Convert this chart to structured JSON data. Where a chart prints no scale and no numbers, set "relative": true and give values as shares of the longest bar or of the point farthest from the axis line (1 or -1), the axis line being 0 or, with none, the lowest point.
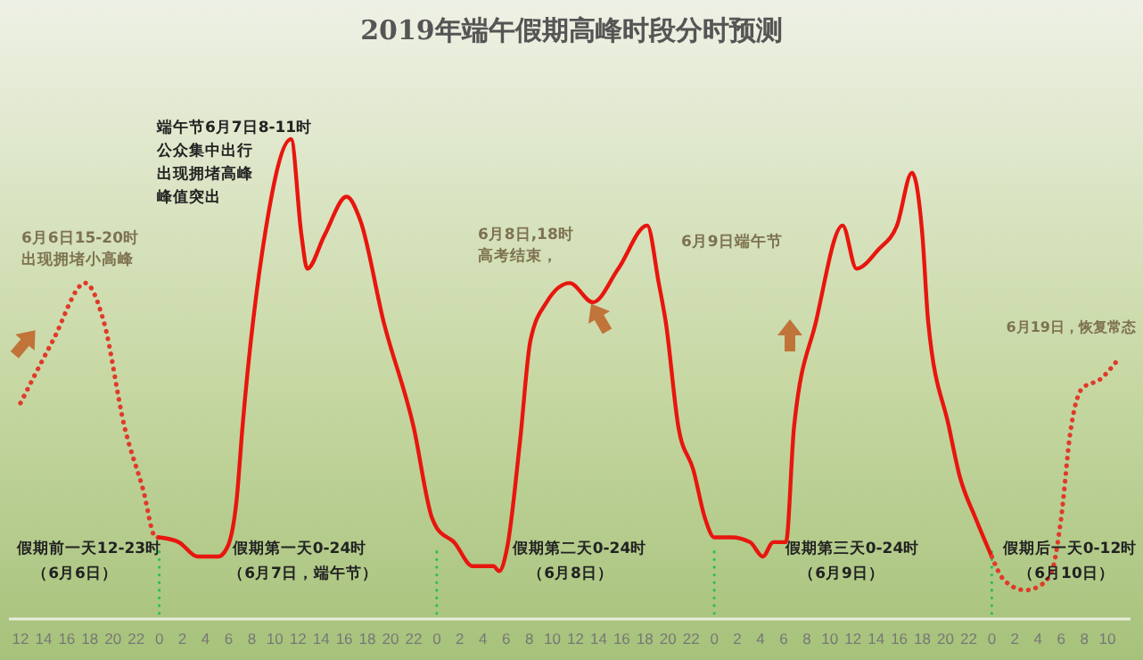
{
  "chart_data": {
    "type": "line",
    "title": "2019年端午假期高峰时段分时预测",
    "relative": true,
    "xlim": [
      "2019-06-06T11:00",
      "2019-06-10T12:00"
    ],
    "xticks": [
      {
        "value": "2019-06-06T12:00",
        "label": "12"
      },
      {
        "value": "2019-06-06T14:00",
        "label": "14"
      },
      {
        "value": "2019-06-06T16:00",
        "label": "16"
      },
      {
        "value": "2019-06-06T18:00",
        "label": "18"
      },
      {
        "value": "2019-06-06T20:00",
        "label": "20"
      },
      {
        "value": "2019-06-06T22:00",
        "label": "22"
      },
      {
        "value": "2019-06-07T00:00",
        "label": "0"
      },
      {
        "value": "2019-06-07T02:00",
        "label": "2"
      },
      {
        "value": "2019-06-07T04:00",
        "label": "4"
      },
      {
        "value": "2019-06-07T06:00",
        "label": "6"
      },
      {
        "value": "2019-06-07T08:00",
        "label": "8"
      },
      {
        "value": "2019-06-07T10:00",
        "label": "10"
      },
      {
        "value": "2019-06-07T12:00",
        "label": "12"
      },
      {
        "value": "2019-06-07T14:00",
        "label": "14"
      },
      {
        "value": "2019-06-07T16:00",
        "label": "16"
      },
      {
        "value": "2019-06-07T18:00",
        "label": "18"
      },
      {
        "value": "2019-06-07T20:00",
        "label": "20"
      },
      {
        "value": "2019-06-07T22:00",
        "label": "22"
      },
      {
        "value": "2019-06-08T00:00",
        "label": "0"
      },
      {
        "value": "2019-06-08T02:00",
        "label": "2"
      },
      {
        "value": "2019-06-08T04:00",
        "label": "4"
      },
      {
        "value": "2019-06-08T06:00",
        "label": "6"
      },
      {
        "value": "2019-06-08T08:00",
        "label": "8"
      },
      {
        "value": "2019-06-08T10:00",
        "label": "10"
      },
      {
        "value": "2019-06-08T12:00",
        "label": "12"
      },
      {
        "value": "2019-06-08T14:00",
        "label": "14"
      },
      {
        "value": "2019-06-08T16:00",
        "label": "16"
      },
      {
        "value": "2019-06-08T18:00",
        "label": "18"
      },
      {
        "value": "2019-06-08T20:00",
        "label": "20"
      },
      {
        "value": "2019-06-08T22:00",
        "label": "22"
      },
      {
        "value": "2019-06-09T00:00",
        "label": "0"
      },
      {
        "value": "2019-06-09T02:00",
        "label": "2"
      },
      {
        "value": "2019-06-09T04:00",
        "label": "4"
      },
      {
        "value": "2019-06-09T06:00",
        "label": "6"
      },
      {
        "value": "2019-06-09T08:00",
        "label": "8"
      },
      {
        "value": "2019-06-09T10:00",
        "label": "10"
      },
      {
        "value": "2019-06-09T12:00",
        "label": "12"
      },
      {
        "value": "2019-06-09T14:00",
        "label": "14"
      },
      {
        "value": "2019-06-09T16:00",
        "label": "16"
      },
      {
        "value": "2019-06-09T18:00",
        "label": "18"
      },
      {
        "value": "2019-06-09T20:00",
        "label": "20"
      },
      {
        "value": "2019-06-09T22:00",
        "label": "22"
      },
      {
        "value": "2019-06-10T00:00",
        "label": "0"
      },
      {
        "value": "2019-06-10T02:00",
        "label": "2"
      },
      {
        "value": "2019-06-10T04:00",
        "label": "4"
      },
      {
        "value": "2019-06-10T06:00",
        "label": "6"
      },
      {
        "value": "2019-06-10T08:00",
        "label": "8"
      },
      {
        "value": "2019-06-10T10:00",
        "label": "10"
      }
    ],
    "series": [
      {
        "color": "#e03a2a",
        "line_style": "dotted",
        "x": [
          "2019-06-06T12:00",
          "2019-06-06T14:48",
          "2019-06-06T17:36",
          "2019-06-06T19:12",
          "2019-06-06T21:00",
          "2019-06-06T22:36",
          "2019-06-06T23:42",
          "2019-06-07T00:00"
        ],
        "values": [
          0.45,
          0.58,
          0.7,
          0.62,
          0.4,
          0.27,
          0.17,
          0.17
        ]
      },
      {
        "color": "#e8160e",
        "line_style": "solid",
        "x": [
          "2019-06-07T00:00",
          "2019-06-07T01:42",
          "2019-06-07T03:18",
          "2019-06-07T05:06",
          "2019-06-07T05:54",
          "2019-06-07T06:42",
          "2019-06-07T07:12",
          "2019-06-07T09:12",
          "2019-06-07T11:24",
          "2019-06-07T12:18",
          "2019-06-07T12:48",
          "2019-06-07T14:18",
          "2019-06-07T16:12",
          "2019-06-07T17:24",
          "2019-06-07T19:24",
          "2019-06-07T22:00",
          "2019-06-07T23:36",
          "2019-06-08T00:00",
          "2019-06-08T01:30",
          "2019-06-08T03:06",
          "2019-06-08T04:54",
          "2019-06-08T05:24",
          "2019-06-08T06:06",
          "2019-06-08T07:12",
          "2019-06-08T08:06",
          "2019-06-08T09:30",
          "2019-06-08T11:30",
          "2019-06-08T13:30",
          "2019-06-08T15:42",
          "2019-06-08T18:12",
          "2019-06-08T19:12",
          "2019-06-08T19:48",
          "2019-06-08T20:54",
          "2019-06-08T22:12",
          "2019-06-08T23:12",
          "2019-06-09T00:00",
          "2019-06-09T01:30",
          "2019-06-09T03:06",
          "2019-06-09T04:12",
          "2019-06-09T05:06",
          "2019-06-09T06:12",
          "2019-06-09T06:54",
          "2019-06-09T08:48",
          "2019-06-09T11:06",
          "2019-06-09T12:18",
          "2019-06-09T14:12",
          "2019-06-09T15:48",
          "2019-06-09T17:06",
          "2019-06-09T18:00",
          "2019-06-09T18:30",
          "2019-06-09T20:18",
          "2019-06-09T21:12",
          "2019-06-09T22:36",
          "2019-06-10T00:00"
        ],
        "values": [
          0.17,
          0.16,
          0.13,
          0.13,
          0.15,
          0.25,
          0.4,
          0.81,
          1.0,
          0.8,
          0.73,
          0.8,
          0.88,
          0.83,
          0.62,
          0.4,
          0.21,
          0.19,
          0.16,
          0.11,
          0.11,
          0.1,
          0.15,
          0.37,
          0.58,
          0.66,
          0.7,
          0.66,
          0.73,
          0.82,
          0.7,
          0.62,
          0.4,
          0.31,
          0.21,
          0.17,
          0.17,
          0.16,
          0.13,
          0.16,
          0.16,
          0.4,
          0.62,
          0.82,
          0.73,
          0.77,
          0.82,
          0.93,
          0.8,
          0.62,
          0.4,
          0.3,
          0.21,
          0.13
        ]
      },
      {
        "color": "#e03a2a",
        "line_style": "dotted",
        "x": [
          "2019-06-10T00:00",
          "2019-06-10T01:06",
          "2019-06-10T02:54",
          "2019-06-10T04:12",
          "2019-06-10T05:12",
          "2019-06-10T06:00",
          "2019-06-10T06:48",
          "2019-06-10T07:48",
          "2019-06-10T09:24",
          "2019-06-10T10:54"
        ],
        "values": [
          0.13,
          0.08,
          0.06,
          0.07,
          0.1,
          0.21,
          0.39,
          0.48,
          0.5,
          0.54
        ]
      }
    ],
    "ref_lines": [
      {
        "axis": "x",
        "value": "2019-06-07T00:00",
        "color": "#2fbf4f",
        "line_style": "dotted"
      },
      {
        "axis": "x",
        "value": "2019-06-08T00:00",
        "color": "#2fbf4f",
        "line_style": "dotted"
      },
      {
        "axis": "x",
        "value": "2019-06-09T00:00",
        "color": "#2fbf4f",
        "line_style": "dotted"
      },
      {
        "axis": "x",
        "value": "2019-06-10T00:00",
        "color": "#2fbf4f",
        "line_style": "dotted"
      }
    ],
    "annotations": [
      "6月6日15-20时",
      "出现拥堵小高峰",
      "端午节6月7日8-11时",
      "公众集中出行",
      "出现拥堵高峰",
      "峰值突出",
      "6月8日,18时",
      "高考结束，",
      "6月9日端午节",
      "6月19日，恢复常态",
      "假期前一天12-23时",
      "（6月6日）",
      "假期第一天0-24时",
      "（6月7日，端午节）",
      "假期第二天0-24时",
      "（6月8日）",
      "假期第三天0-24时",
      "（6月9日）",
      "假期后一天0-12时",
      "（6月10日）"
    ]
  }
}
